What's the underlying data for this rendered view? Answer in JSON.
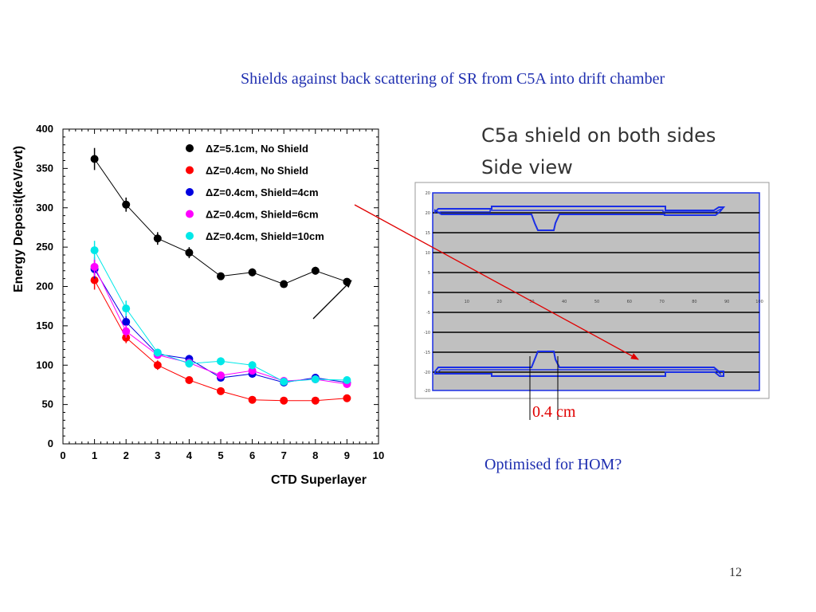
{
  "slide": {
    "title": "Shields against back scattering of SR from C5A into drift chamber",
    "side_view_title_1": "C5a shield on both sides",
    "side_view_title_2": "Side view",
    "dimension_label": "0.4 cm",
    "optimised_note": "Optimised for HOM?",
    "page_number": "12"
  },
  "side_view": {
    "y_ticks": [
      "20",
      "20",
      "15",
      "10",
      "5",
      "0",
      "-5",
      "-10",
      "-15",
      "-20",
      "-20"
    ],
    "x_ticks": [
      "10",
      "20",
      "30",
      "40",
      "50",
      "60",
      "70",
      "80",
      "90",
      "100"
    ],
    "colors": {
      "background": "#c0c0c0",
      "shield": "#1a2ee6",
      "frame": "#1a2ee6",
      "lines": "#000000"
    }
  },
  "annotations": {
    "arrow_color": "#e00000"
  },
  "chart_data": {
    "type": "scatter",
    "xlabel": "CTD Superlayer",
    "ylabel": "Energy Deposit(keV/evt)",
    "xlim": [
      0,
      10
    ],
    "ylim": [
      0,
      400
    ],
    "x_ticks": [
      0,
      1,
      2,
      3,
      4,
      5,
      6,
      7,
      8,
      9,
      10
    ],
    "y_ticks": [
      0,
      50,
      100,
      150,
      200,
      250,
      300,
      350,
      400
    ],
    "legend_position": "top-right",
    "grid": false,
    "series": [
      {
        "name": "ΔZ=5.1cm, No Shield",
        "color": "#000000",
        "x": [
          1,
          2,
          3,
          4,
          5,
          6,
          7,
          8,
          9
        ],
        "y": [
          362,
          304,
          261,
          243,
          213,
          218,
          203,
          220,
          206
        ],
        "err": [
          14,
          9,
          8,
          7,
          4,
          5,
          4,
          5,
          4
        ]
      },
      {
        "name": "ΔZ=0.4cm, No Shield",
        "color": "#ff0000",
        "x": [
          1,
          2,
          3,
          4,
          5,
          6,
          7,
          8,
          9
        ],
        "y": [
          208,
          135,
          100,
          81,
          67,
          56,
          55,
          55,
          58
        ],
        "err": [
          12,
          7,
          6,
          4,
          3,
          3,
          2,
          2,
          3
        ]
      },
      {
        "name": "ΔZ=0.4cm, Shield=4cm",
        "color": "#0000e0",
        "x": [
          1,
          2,
          3,
          4,
          5,
          6,
          7,
          8,
          9
        ],
        "y": [
          222,
          155,
          114,
          108,
          84,
          89,
          78,
          84,
          78
        ],
        "err": [
          12,
          8,
          5,
          5,
          4,
          5,
          4,
          4,
          4
        ]
      },
      {
        "name": "ΔZ=0.4cm, Shield=6cm",
        "color": "#ff00ff",
        "x": [
          1,
          2,
          3,
          4,
          5,
          6,
          7,
          8,
          9
        ],
        "y": [
          225,
          143,
          113,
          103,
          87,
          93,
          80,
          82,
          76
        ],
        "err": [
          12,
          8,
          5,
          5,
          4,
          5,
          4,
          4,
          4
        ]
      },
      {
        "name": "ΔZ=0.4cm, Shield=10cm",
        "color": "#00e8e8",
        "x": [
          1,
          2,
          3,
          4,
          5,
          6,
          7,
          8,
          9
        ],
        "y": [
          246,
          172,
          116,
          102,
          105,
          100,
          79,
          82,
          81
        ],
        "err": [
          12,
          10,
          5,
          5,
          5,
          5,
          4,
          4,
          4
        ]
      }
    ]
  }
}
